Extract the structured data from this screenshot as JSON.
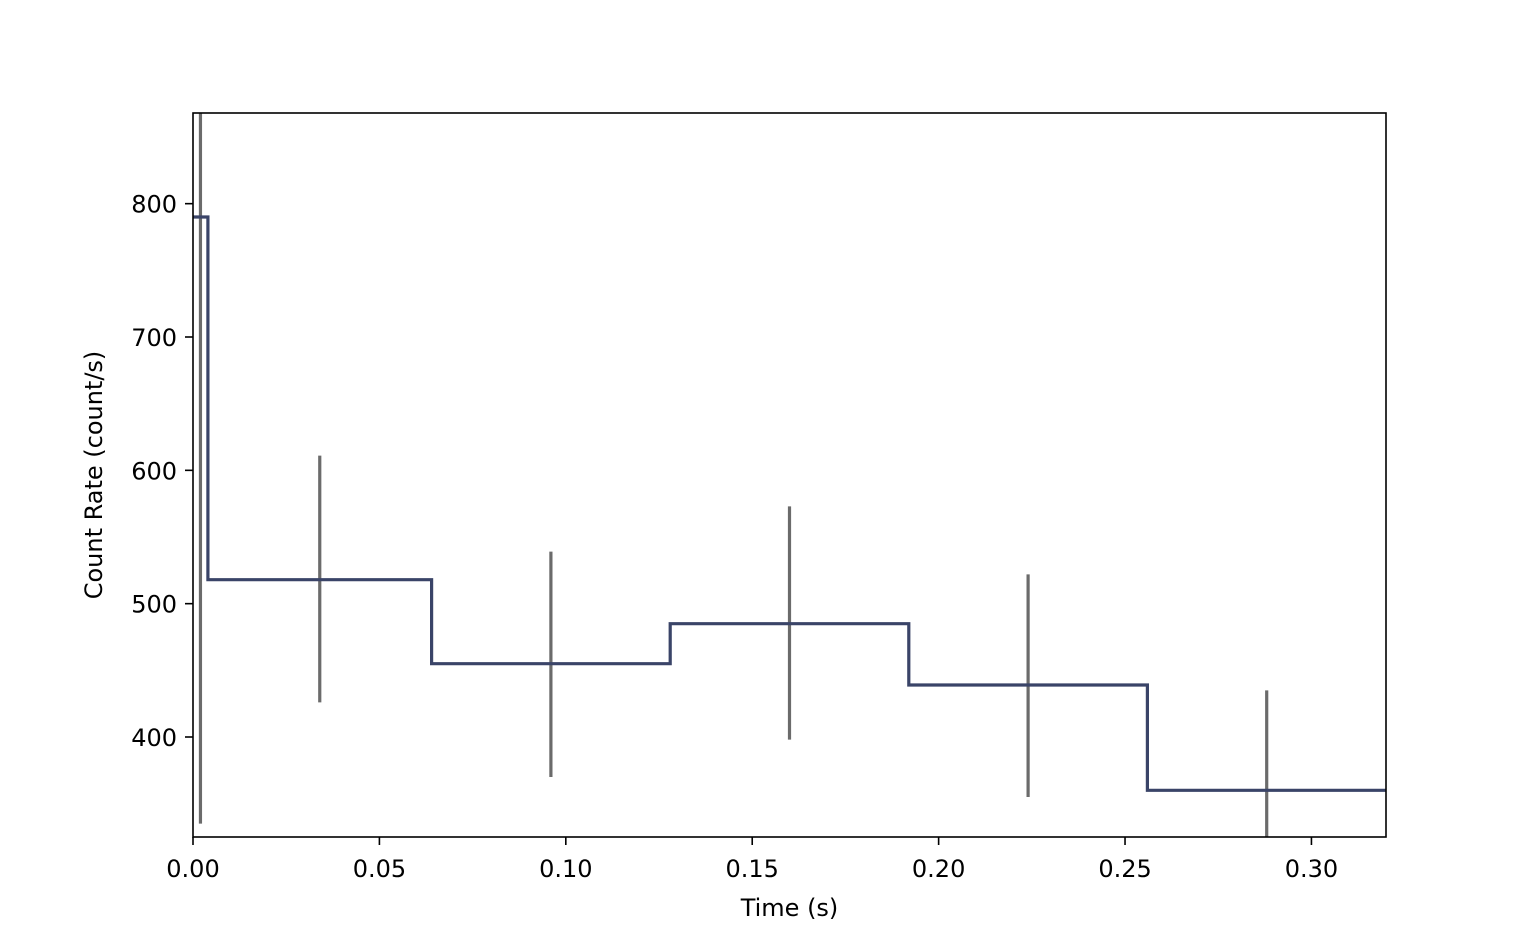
{
  "chart_data": {
    "type": "line",
    "drawstyle": "steps-post",
    "xlabel": "Time (s)",
    "ylabel": "Count Rate (count/s)",
    "xlim": [
      0.0,
      0.32
    ],
    "ylim": [
      325,
      868
    ],
    "grid": false,
    "x_ticks": [
      {
        "value": 0.0,
        "label": "0.00"
      },
      {
        "value": 0.05,
        "label": "0.05"
      },
      {
        "value": 0.1,
        "label": "0.10"
      },
      {
        "value": 0.15,
        "label": "0.15"
      },
      {
        "value": 0.2,
        "label": "0.20"
      },
      {
        "value": 0.25,
        "label": "0.25"
      },
      {
        "value": 0.3,
        "label": "0.30"
      }
    ],
    "y_ticks": [
      {
        "value": 400,
        "label": "400"
      },
      {
        "value": 500,
        "label": "500"
      },
      {
        "value": 600,
        "label": "600"
      },
      {
        "value": 700,
        "label": "700"
      },
      {
        "value": 800,
        "label": "800"
      }
    ],
    "bins": [
      {
        "start": 0.0,
        "end": 0.004,
        "center": 0.002,
        "rate": 790,
        "err_low": 335,
        "err_high": 868
      },
      {
        "start": 0.004,
        "end": 0.064,
        "center": 0.034,
        "rate": 518,
        "err_low": 426,
        "err_high": 611
      },
      {
        "start": 0.064,
        "end": 0.128,
        "center": 0.096,
        "rate": 455,
        "err_low": 370,
        "err_high": 539
      },
      {
        "start": 0.128,
        "end": 0.192,
        "center": 0.16,
        "rate": 485,
        "err_low": 398,
        "err_high": 573
      },
      {
        "start": 0.192,
        "end": 0.256,
        "center": 0.224,
        "rate": 439,
        "err_low": 355,
        "err_high": 522
      },
      {
        "start": 0.256,
        "end": 0.32,
        "center": 0.288,
        "rate": 360,
        "err_low": 325,
        "err_high": 435
      }
    ],
    "colors": {
      "step_line": "#3a4468",
      "error_bars": "#6b6b6b",
      "axes": "#000000"
    }
  }
}
